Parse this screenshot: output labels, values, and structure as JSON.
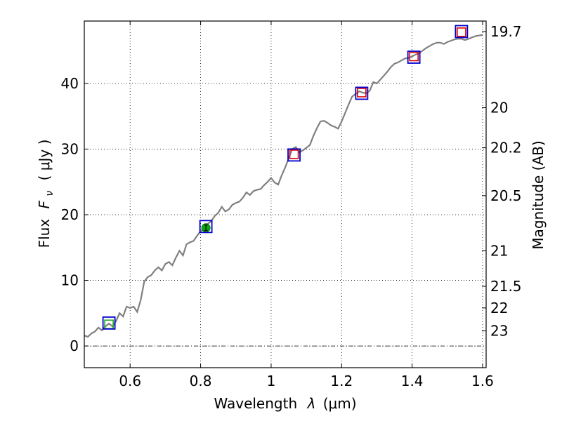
{
  "chart_data": {
    "type": "line",
    "xlabel": "Wavelength",
    "xlabel_symbol": "λ",
    "xlabel_unit": "(μm)",
    "ylabel_prefix": "Flux",
    "ylabel_symbol": "F",
    "ylabel_subscript": "ν",
    "ylabel_unit": "( μJy )",
    "y2label": "Magnitude (AB)",
    "xlim": [
      0.47,
      1.61
    ],
    "ylim": [
      -3.3,
      49.5
    ],
    "xticks": [
      0.6,
      0.8,
      1.0,
      1.2,
      1.4,
      1.6
    ],
    "xtick_labels": [
      "0.6",
      "0.8",
      "1",
      "1.2",
      "1.4",
      "1.6"
    ],
    "yticks": [
      0,
      10,
      20,
      30,
      40
    ],
    "ytick_labels": [
      "0",
      "10",
      "20",
      "30",
      "40"
    ],
    "y2ticks": [
      {
        "label": "19.7",
        "flux": 47.9
      },
      {
        "label": "20",
        "flux": 36.3
      },
      {
        "label": "20.2",
        "flux": 30.2
      },
      {
        "label": "20.5",
        "flux": 22.9
      },
      {
        "label": "21",
        "flux": 14.5
      },
      {
        "label": "21.5",
        "flux": 9.1
      },
      {
        "label": "22",
        "flux": 5.8
      },
      {
        "label": "23",
        "flux": 2.3
      }
    ],
    "grid": true,
    "series": [
      {
        "kind": "sed_model",
        "color": "#808080",
        "x": [
          0.47,
          0.48,
          0.49,
          0.5,
          0.51,
          0.52,
          0.53,
          0.54,
          0.55,
          0.56,
          0.57,
          0.58,
          0.59,
          0.6,
          0.61,
          0.62,
          0.63,
          0.64,
          0.65,
          0.66,
          0.67,
          0.68,
          0.69,
          0.7,
          0.71,
          0.72,
          0.73,
          0.74,
          0.75,
          0.76,
          0.77,
          0.78,
          0.79,
          0.8,
          0.81,
          0.82,
          0.83,
          0.84,
          0.85,
          0.86,
          0.87,
          0.88,
          0.89,
          0.9,
          0.91,
          0.92,
          0.93,
          0.94,
          0.95,
          0.96,
          0.97,
          0.98,
          0.99,
          1.0,
          1.01,
          1.02,
          1.03,
          1.04,
          1.05,
          1.06,
          1.07,
          1.08,
          1.09,
          1.1,
          1.11,
          1.12,
          1.13,
          1.14,
          1.15,
          1.16,
          1.17,
          1.18,
          1.19,
          1.2,
          1.21,
          1.22,
          1.23,
          1.24,
          1.25,
          1.26,
          1.27,
          1.28,
          1.29,
          1.3,
          1.31,
          1.32,
          1.33,
          1.34,
          1.35,
          1.36,
          1.37,
          1.38,
          1.39,
          1.4,
          1.41,
          1.42,
          1.43,
          1.44,
          1.45,
          1.46,
          1.47,
          1.48,
          1.49,
          1.5,
          1.51,
          1.52,
          1.53,
          1.54,
          1.55,
          1.56,
          1.57,
          1.58,
          1.59,
          1.6
        ],
        "y": [
          1.6,
          1.4,
          1.9,
          2.2,
          2.8,
          2.4,
          3.0,
          3.4,
          3.0,
          3.8,
          5.0,
          4.5,
          6.0,
          5.8,
          6.0,
          5.2,
          7.0,
          9.8,
          10.5,
          10.8,
          11.5,
          12.0,
          11.5,
          12.5,
          12.8,
          12.3,
          13.5,
          14.5,
          13.8,
          15.5,
          15.8,
          16.0,
          16.8,
          17.5,
          17.8,
          18.6,
          19.0,
          19.8,
          20.3,
          21.2,
          20.5,
          20.8,
          21.5,
          21.8,
          22.0,
          22.6,
          23.4,
          23.0,
          23.6,
          23.8,
          23.9,
          24.5,
          25.0,
          25.6,
          24.9,
          24.6,
          26.0,
          27.2,
          28.6,
          30.0,
          30.3,
          29.5,
          29.8,
          30.2,
          30.6,
          32.0,
          33.2,
          34.2,
          34.3,
          34.0,
          33.6,
          33.4,
          33.1,
          34.2,
          35.5,
          36.8,
          38.0,
          38.4,
          38.8,
          38.6,
          38.5,
          38.9,
          40.2,
          40.0,
          40.6,
          41.2,
          41.8,
          42.5,
          43.0,
          43.2,
          43.5,
          43.8,
          43.9,
          44.1,
          44.4,
          44.6,
          45.0,
          45.4,
          45.7,
          46.0,
          46.2,
          46.2,
          46.0,
          46.3,
          46.5,
          46.7,
          46.8,
          46.8,
          46.6,
          46.8,
          47.0,
          47.2,
          47.3,
          47.4
        ]
      }
    ],
    "observed_points": [
      {
        "x": 0.54,
        "y": 3.5,
        "color": "#0000cc"
      },
      {
        "x": 0.815,
        "y": 18.2,
        "color": "#0000cc"
      },
      {
        "x": 1.065,
        "y": 29.1,
        "color": "#0000cc"
      },
      {
        "x": 1.257,
        "y": 38.5,
        "color": "#0000cc"
      },
      {
        "x": 1.405,
        "y": 44.0,
        "color": "#0000cc"
      },
      {
        "x": 1.54,
        "y": 47.9,
        "color": "#0000cc"
      }
    ],
    "model_points": [
      {
        "x": 0.54,
        "y": 3.3,
        "color": "#1fa81f",
        "style": "square"
      },
      {
        "x": 0.815,
        "y": 18.0,
        "color": "#0aaa0a",
        "style": "filled-circle-errorbar"
      },
      {
        "x": 1.065,
        "y": 29.2,
        "color": "#dd0000",
        "style": "square"
      },
      {
        "x": 1.257,
        "y": 38.6,
        "color": "#dd0000",
        "style": "square"
      },
      {
        "x": 1.405,
        "y": 44.1,
        "color": "#dd0000",
        "style": "square"
      },
      {
        "x": 1.54,
        "y": 47.8,
        "color": "#dd0000",
        "style": "square"
      }
    ],
    "zero_line": true
  }
}
